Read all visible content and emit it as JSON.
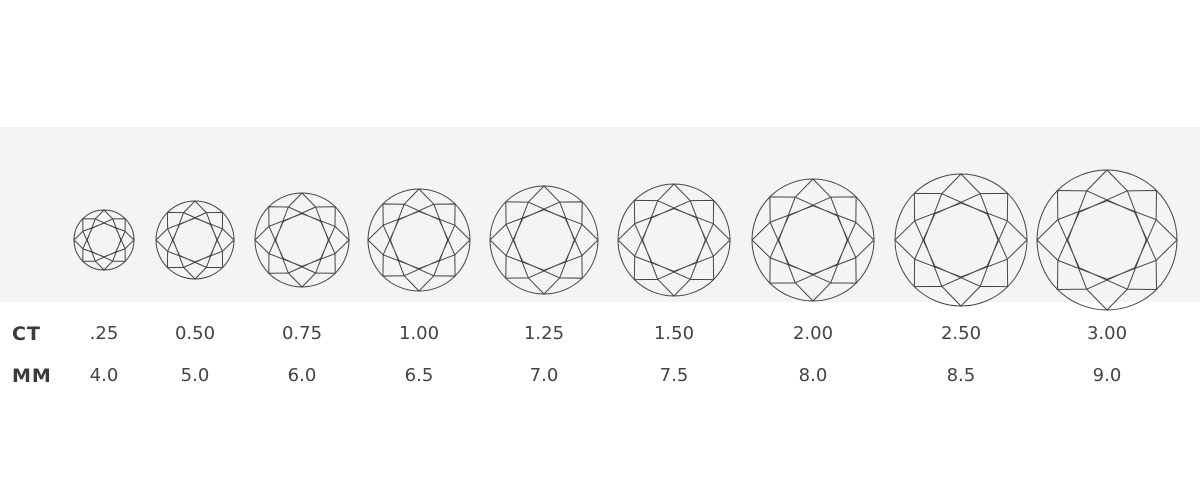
{
  "row_labels": {
    "ct": "CT",
    "mm": "MM"
  },
  "diamonds": [
    {
      "ct": ".25",
      "mm": "4.0"
    },
    {
      "ct": "0.50",
      "mm": "5.0"
    },
    {
      "ct": "0.75",
      "mm": "6.0"
    },
    {
      "ct": "1.00",
      "mm": "6.5"
    },
    {
      "ct": "1.25",
      "mm": "7.0"
    },
    {
      "ct": "1.50",
      "mm": "7.5"
    },
    {
      "ct": "2.00",
      "mm": "8.0"
    },
    {
      "ct": "2.50",
      "mm": "8.5"
    },
    {
      "ct": "3.00",
      "mm": "9.0"
    }
  ],
  "colors": {
    "band": "#f4f4f4",
    "line": "#444444",
    "text": "#444444"
  }
}
